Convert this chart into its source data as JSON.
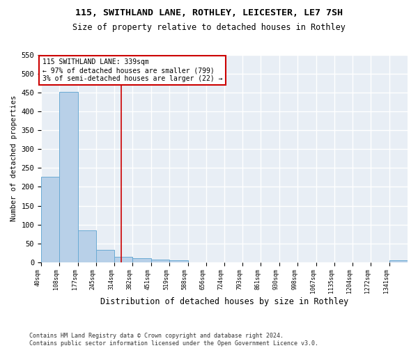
{
  "title1": "115, SWITHLAND LANE, ROTHLEY, LEICESTER, LE7 7SH",
  "title2": "Size of property relative to detached houses in Rothley",
  "xlabel": "Distribution of detached houses by size in Rothley",
  "ylabel": "Number of detached properties",
  "bin_edges": [
    40,
    108,
    177,
    245,
    314,
    382,
    451,
    519,
    588,
    656,
    724,
    793,
    861,
    930,
    998,
    1067,
    1135,
    1204,
    1272,
    1341,
    1409
  ],
  "bin_counts": [
    226,
    452,
    84,
    33,
    14,
    11,
    7,
    5,
    0,
    0,
    0,
    0,
    0,
    0,
    0,
    0,
    0,
    0,
    0,
    5
  ],
  "bar_color": "#b8d0e8",
  "bar_edge_color": "#6aaad4",
  "property_size": 339,
  "vline_color": "#cc0000",
  "annotation_line1": "115 SWITHLAND LANE: 339sqm",
  "annotation_line2": "← 97% of detached houses are smaller (799)",
  "annotation_line3": "3% of semi-detached houses are larger (22) →",
  "annotation_box_color": "white",
  "annotation_box_edge_color": "#cc0000",
  "footer": "Contains HM Land Registry data © Crown copyright and database right 2024.\nContains public sector information licensed under the Open Government Licence v3.0.",
  "ylim_max": 550,
  "bg_color": "#e8eef5",
  "grid_color": "white",
  "yticks": [
    0,
    50,
    100,
    150,
    200,
    250,
    300,
    350,
    400,
    450,
    500,
    550
  ]
}
